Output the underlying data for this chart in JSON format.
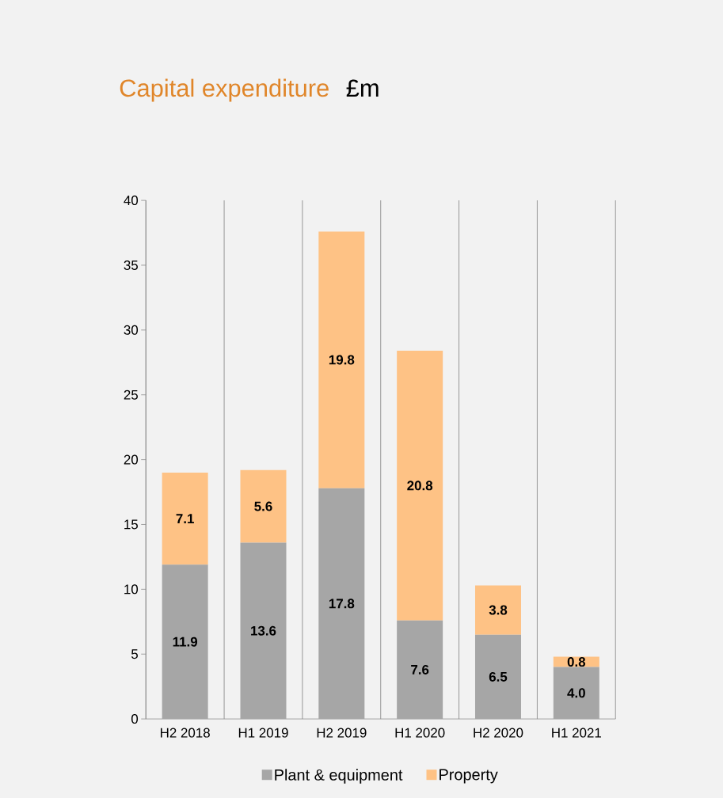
{
  "chart_data": {
    "type": "bar",
    "title": "Capital expenditure",
    "subtitle": "£m",
    "stacked": true,
    "categories": [
      "H2 2018",
      "H1 2019",
      "H2 2019",
      "H1 2020",
      "H2 2020",
      "H1 2021"
    ],
    "series": [
      {
        "name": "Plant & equipment",
        "color": "#a6a6a6",
        "values": [
          11.9,
          13.6,
          17.8,
          7.6,
          6.5,
          4.0
        ],
        "value_labels": [
          "11.9",
          "13.6",
          "17.8",
          "7.6",
          "6.5",
          "4.0"
        ]
      },
      {
        "name": "Property",
        "color": "#fec285",
        "values": [
          7.1,
          5.6,
          19.8,
          20.8,
          3.8,
          0.8
        ],
        "value_labels": [
          "7.1",
          "5.6",
          "19.8",
          "20.8",
          "3.8",
          "0.8"
        ]
      }
    ],
    "ylim": [
      0,
      40
    ],
    "yticks": [
      0,
      5,
      10,
      15,
      20,
      25,
      30,
      35,
      40
    ],
    "grid": "x",
    "legend": "bottom"
  }
}
